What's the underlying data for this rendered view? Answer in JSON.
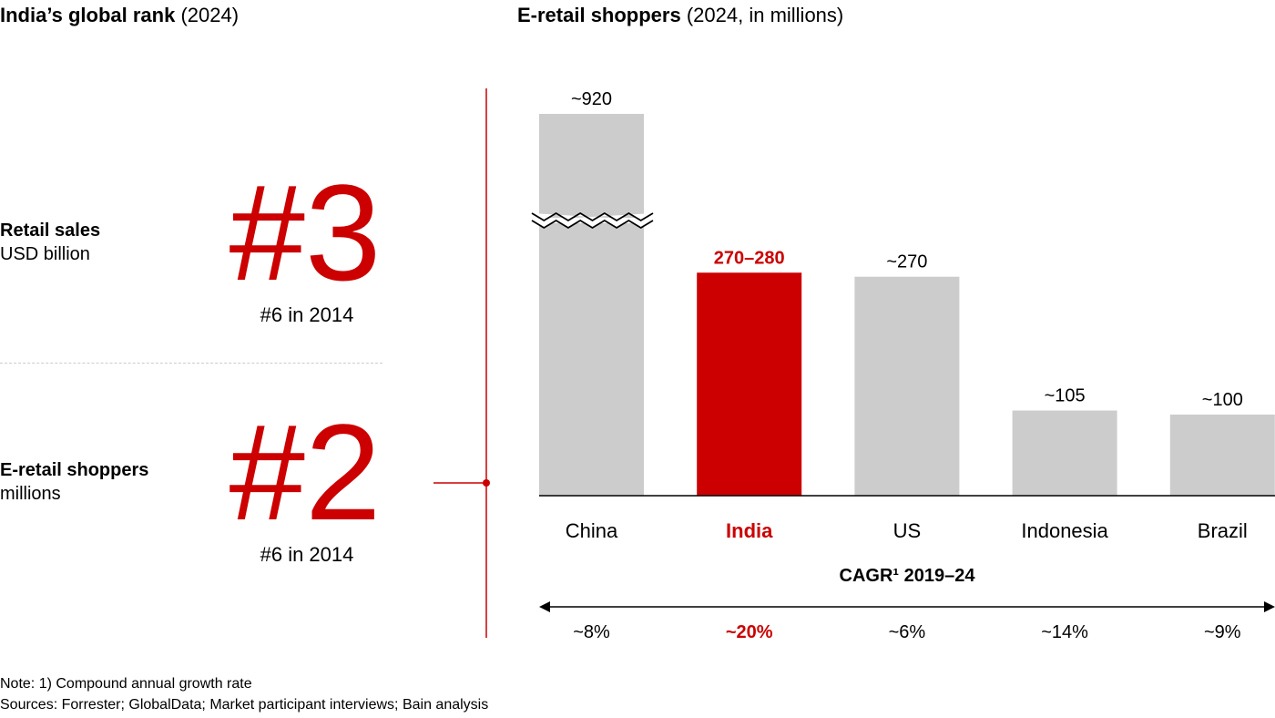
{
  "left": {
    "title_bold": "India’s global rank",
    "title_rest": "(2024)",
    "metrics": [
      {
        "label": "Retail sales",
        "unit": "USD billion",
        "rank": "#3",
        "previous": "#6 in 2014"
      },
      {
        "label": "E-retail shoppers",
        "unit": "millions",
        "rank": "#2",
        "previous": "#6 in 2014"
      }
    ]
  },
  "right": {
    "title_bold": "E-retail shoppers",
    "title_rest": "(2024, in millions)"
  },
  "chart_data": {
    "type": "bar",
    "title": "E-retail shoppers (2024, in millions)",
    "categories": [
      "China",
      "India",
      "US",
      "Indonesia",
      "Brazil"
    ],
    "values": [
      920,
      275,
      270,
      105,
      100
    ],
    "data_labels": [
      "~920",
      "270–280",
      "~270",
      "~105",
      "~100"
    ],
    "axis_break": "China",
    "highlight": "India",
    "colors": {
      "default": "#cccccc",
      "highlight": "#cc0000"
    },
    "cagr_title": "CAGR¹ 2019–24",
    "cagr_values": [
      "~8%",
      "~20%",
      "~6%",
      "~14%",
      "~9%"
    ]
  },
  "notes": {
    "note": "Note: 1) Compound annual growth rate",
    "sources": "Sources: Forrester; GlobalData; Market participant interviews; Bain analysis"
  }
}
